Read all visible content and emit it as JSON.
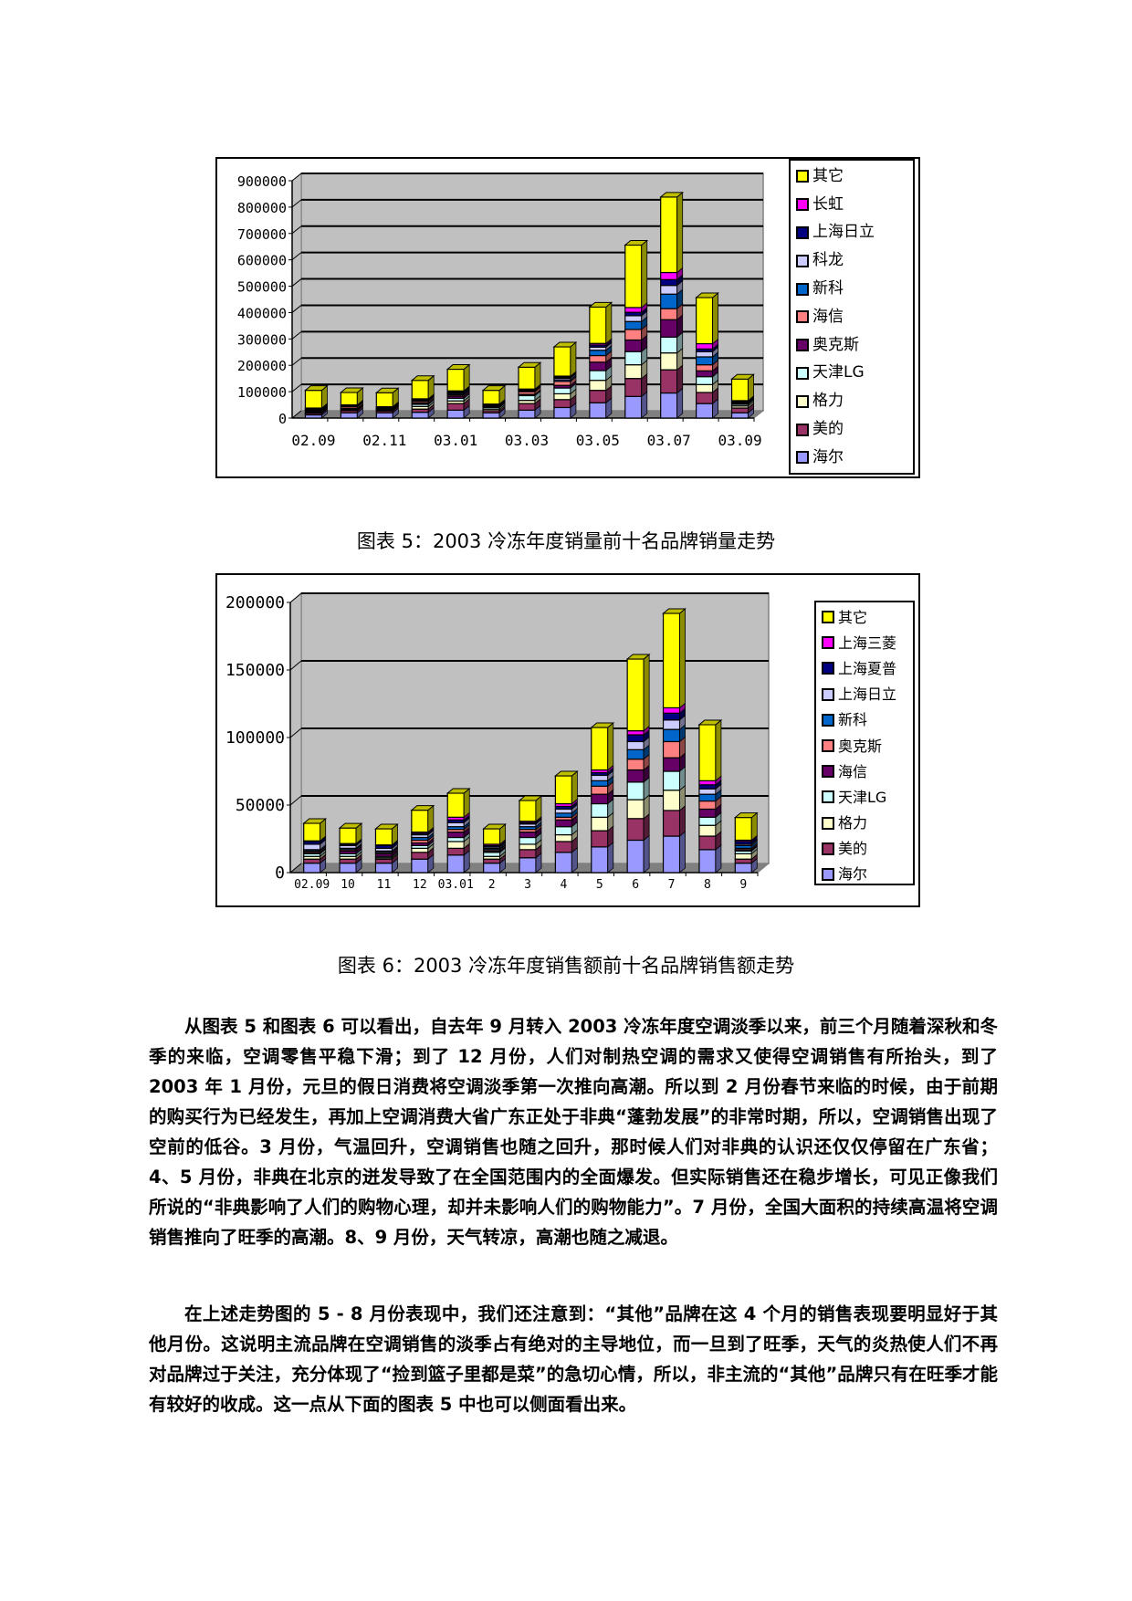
{
  "charts": [
    {
      "id": "chart1",
      "legend": [
        {
          "label": "其它",
          "color": "#FFFF00"
        },
        {
          "label": "长虹",
          "color": "#FF00FF"
        },
        {
          "label": "上海日立",
          "color": "#000080"
        },
        {
          "label": "科龙",
          "color": "#CCCCFF"
        },
        {
          "label": "新科",
          "color": "#0066CC"
        },
        {
          "label": "海信",
          "color": "#FF8080"
        },
        {
          "label": "奥克斯",
          "color": "#660066"
        },
        {
          "label": "天津LG",
          "color": "#CCFFFF"
        },
        {
          "label": "格力",
          "color": "#FFFFCC"
        },
        {
          "label": "美的",
          "color": "#993366"
        },
        {
          "label": "海尔",
          "color": "#9999FF"
        }
      ]
    },
    {
      "id": "chart2",
      "legend": [
        {
          "label": "其它",
          "color": "#FFFF00"
        },
        {
          "label": "上海三菱",
          "color": "#FF00FF"
        },
        {
          "label": "上海夏普",
          "color": "#000080"
        },
        {
          "label": "上海日立",
          "color": "#CCCCFF"
        },
        {
          "label": "新科",
          "color": "#0066CC"
        },
        {
          "label": "奥克斯",
          "color": "#FF8080"
        },
        {
          "label": "海信",
          "color": "#660066"
        },
        {
          "label": "天津LG",
          "color": "#CCFFFF"
        },
        {
          "label": "格力",
          "color": "#FFFFCC"
        },
        {
          "label": "美的",
          "color": "#993366"
        },
        {
          "label": "海尔",
          "color": "#9999FF"
        }
      ]
    }
  ],
  "chart_data": [
    {
      "type": "bar",
      "stacked": true,
      "three_d": true,
      "title": "图表 5：2003 冷冻年度销量前十名品牌销量走势",
      "xlabel": "",
      "ylabel": "",
      "ylim": [
        0,
        900000
      ],
      "yticks": [
        0,
        100000,
        200000,
        300000,
        400000,
        500000,
        600000,
        700000,
        800000,
        900000
      ],
      "grid": true,
      "legend_position": "right",
      "categories": [
        "02.09",
        "02.10",
        "02.11",
        "02.12",
        "03.01",
        "03.02",
        "03.03",
        "03.04",
        "03.05",
        "03.06",
        "03.07",
        "03.08",
        "03.09"
      ],
      "xtick_labels": [
        "02.09",
        "",
        "02.11",
        "",
        "03.01",
        "",
        "03.03",
        "",
        "03.05",
        "",
        "03.07",
        "",
        "03.09"
      ],
      "series": [
        {
          "name": "海尔",
          "color": "#9999FF",
          "values": [
            12000,
            20000,
            20000,
            22000,
            30000,
            20000,
            30000,
            40000,
            58000,
            82000,
            95000,
            55000,
            20000
          ]
        },
        {
          "name": "美的",
          "color": "#993366",
          "values": [
            6000,
            8000,
            7000,
            12000,
            25000,
            8000,
            25000,
            30000,
            47000,
            68000,
            88000,
            42000,
            18000
          ]
        },
        {
          "name": "格力",
          "color": "#FFFFCC",
          "values": [
            3000,
            3000,
            2000,
            10000,
            10000,
            6000,
            12000,
            22000,
            38000,
            52000,
            64000,
            30000,
            8000
          ]
        },
        {
          "name": "天津LG",
          "color": "#CCFFFF",
          "values": [
            3000,
            2000,
            2000,
            8000,
            10000,
            6000,
            18000,
            22000,
            37000,
            50000,
            60000,
            30000,
            6000
          ]
        },
        {
          "name": "奥克斯",
          "color": "#660066",
          "values": [
            3000,
            3000,
            2000,
            5000,
            8000,
            3000,
            5000,
            10000,
            32000,
            44000,
            66000,
            22000,
            4000
          ]
        },
        {
          "name": "海信",
          "color": "#FF8080",
          "values": [
            2000,
            6000,
            2000,
            6000,
            5000,
            2000,
            10000,
            15000,
            25000,
            40000,
            42000,
            23000,
            2000
          ]
        },
        {
          "name": "新科",
          "color": "#0066CC",
          "values": [
            2000,
            2000,
            2000,
            3000,
            5000,
            2000,
            3000,
            6000,
            20000,
            30000,
            55000,
            30000,
            2000
          ]
        },
        {
          "name": "科龙",
          "color": "#CCCCFF",
          "values": [
            2000,
            2000,
            2000,
            3000,
            4000,
            2000,
            3000,
            6000,
            12000,
            22000,
            33000,
            20000,
            2000
          ]
        },
        {
          "name": "上海日立",
          "color": "#000080",
          "values": [
            3000,
            2000,
            2000,
            2000,
            3000,
            2000,
            2000,
            4000,
            8000,
            13000,
            22000,
            10000,
            2000
          ]
        },
        {
          "name": "长虹",
          "color": "#FF00FF",
          "values": [
            2000,
            2000,
            2000,
            2000,
            3000,
            2000,
            2000,
            4000,
            6000,
            18000,
            27000,
            20000,
            2000
          ]
        },
        {
          "name": "其它",
          "color": "#FFFF00",
          "values": [
            67000,
            47000,
            53000,
            70000,
            82000,
            52000,
            83000,
            111000,
            138000,
            237000,
            286000,
            175000,
            82000
          ]
        }
      ]
    },
    {
      "type": "bar",
      "stacked": true,
      "three_d": true,
      "title": "图表 6：2003 冷冻年度销售额前十名品牌销售额走势",
      "xlabel": "",
      "ylabel": "",
      "ylim": [
        0,
        200000
      ],
      "yticks": [
        0,
        50000,
        100000,
        150000,
        200000
      ],
      "grid": true,
      "legend_position": "right",
      "categories": [
        "02.09",
        "10",
        "11",
        "12",
        "03.01",
        "2",
        "3",
        "4",
        "5",
        "6",
        "7",
        "8",
        "9"
      ],
      "series": [
        {
          "name": "海尔",
          "color": "#9999FF",
          "values": [
            7000,
            7000,
            7000,
            10000,
            13000,
            7000,
            11000,
            15000,
            19000,
            24000,
            27000,
            17000,
            7000
          ]
        },
        {
          "name": "美的",
          "color": "#993366",
          "values": [
            3000,
            3000,
            3000,
            5000,
            5000,
            3000,
            6000,
            8000,
            12000,
            16000,
            19000,
            10000,
            3000
          ]
        },
        {
          "name": "格力",
          "color": "#FFFFCC",
          "values": [
            2000,
            2000,
            1000,
            3000,
            5000,
            2000,
            4000,
            5000,
            10000,
            14000,
            15000,
            8000,
            4000
          ]
        },
        {
          "name": "天津LG",
          "color": "#CCFFFF",
          "values": [
            2000,
            2000,
            1000,
            2000,
            3000,
            3000,
            5000,
            6000,
            10000,
            13000,
            14000,
            6000,
            2000
          ]
        },
        {
          "name": "海信",
          "color": "#660066",
          "values": [
            1000,
            2000,
            2000,
            2000,
            4000,
            1000,
            4000,
            5000,
            7000,
            9000,
            10000,
            6000,
            1000
          ]
        },
        {
          "name": "奥克斯",
          "color": "#FF8080",
          "values": [
            1000,
            1000,
            1000,
            2000,
            2000,
            1000,
            2000,
            2000,
            6000,
            8000,
            12000,
            6000,
            1000
          ]
        },
        {
          "name": "新科",
          "color": "#0066CC",
          "values": [
            1000,
            1000,
            1000,
            2000,
            2000,
            1000,
            2000,
            3000,
            4000,
            7000,
            9000,
            5000,
            2000
          ]
        },
        {
          "name": "上海日立",
          "color": "#CCCCFF",
          "values": [
            4000,
            2000,
            2000,
            2000,
            3000,
            1000,
            2000,
            3000,
            4000,
            6000,
            7000,
            4000,
            1000
          ]
        },
        {
          "name": "上海夏普",
          "color": "#000080",
          "values": [
            2000,
            1000,
            2000,
            1000,
            2000,
            1000,
            1000,
            2000,
            2000,
            5000,
            5000,
            3000,
            2000
          ]
        },
        {
          "name": "上海三菱",
          "color": "#FF00FF",
          "values": [
            500,
            500,
            500,
            1000,
            2000,
            1000,
            1000,
            2000,
            2000,
            3000,
            4000,
            3000,
            1000
          ]
        },
        {
          "name": "其它",
          "color": "#FFFF00",
          "values": [
            13000,
            11500,
            11900,
            16200,
            17800,
            11400,
            15400,
            20600,
            31400,
            53100,
            69900,
            41500,
            16800
          ]
        }
      ]
    }
  ],
  "captions": {
    "fig5": "图表 5：2003 冷冻年度销量前十名品牌销量走势",
    "fig6": "图表 6：2003 冷冻年度销售额前十名品牌销售额走势"
  },
  "paragraphs": [
    "从图表 5 和图表 6 可以看出，自去年 9 月转入 2003 冷冻年度空调淡季以来，前三个月随着深秋和冬季的来临，空调零售平稳下滑；到了 12 月份，人们对制热空调的需求又使得空调销售有所抬头，到了 2003 年 1 月份，元旦的假日消费将空调淡季第一次推向高潮。所以到 2 月份春节来临的时候，由于前期的购买行为已经发生，再加上空调消费大省广东正处于非典“蓬勃发展”的非常时期，所以，空调销售出现了空前的低谷。3 月份，气温回升，空调销售也随之回升，那时候人们对非典的认识还仅仅停留在广东省；4、5 月份，非典在北京的迸发导致了在全国范围内的全面爆发。但实际销售还在稳步增长，可见正像我们所说的“非典影响了人们的购物心理，却并未影响人们的购物能力”。7 月份，全国大面积的持续高温将空调销售推向了旺季的高潮。8、9 月份，天气转凉，高潮也随之减退。",
    "在上述走势图的 5 - 8 月份表现中，我们还注意到：“其他”品牌在这 4 个月的销售表现要明显好于其他月份。这说明主流品牌在空调销售的淡季占有绝对的主导地位，而一旦到了旺季，天气的炎热使人们不再对品牌过于关注，充分体现了“捡到篮子里都是菜”的急切心情，所以，非主流的“其他”品牌只有在旺季才能有较好的收成。这一点从下面的图表 5 中也可以侧面看出来。"
  ]
}
